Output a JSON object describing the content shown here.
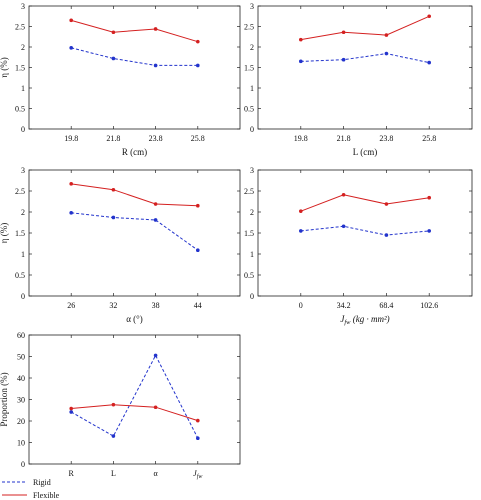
{
  "chart_data": [
    {
      "type": "line",
      "categories": [
        "19.8",
        "21.8",
        "23.8",
        "25.8"
      ],
      "xlabel": "R (cm)",
      "ylabel": "η (%)",
      "ylim": [
        0,
        3
      ],
      "yticks": [
        "0",
        "0.5",
        "1",
        "1.5",
        "2",
        "2.5",
        "3"
      ],
      "grid": false,
      "series": [
        {
          "name": "Rigid",
          "values": [
            1.98,
            1.72,
            1.55,
            1.55
          ],
          "color": "#2233cc",
          "dash": true
        },
        {
          "name": "Flexible",
          "values": [
            2.65,
            2.36,
            2.44,
            2.13
          ],
          "color": "#d42020",
          "dash": false
        }
      ]
    },
    {
      "type": "line",
      "categories": [
        "19.8",
        "21.8",
        "23.8",
        "25.8"
      ],
      "xlabel": "L (cm)",
      "ylabel": "",
      "ylim": [
        0,
        3
      ],
      "yticks": [
        "0",
        "0.5",
        "1",
        "1.5",
        "2",
        "2.5",
        "3"
      ],
      "grid": false,
      "series": [
        {
          "name": "Rigid",
          "values": [
            1.65,
            1.69,
            1.84,
            1.62
          ],
          "color": "#2233cc",
          "dash": true
        },
        {
          "name": "Flexible",
          "values": [
            2.18,
            2.36,
            2.29,
            2.75
          ],
          "color": "#d42020",
          "dash": false
        }
      ]
    },
    {
      "type": "line",
      "categories": [
        "26",
        "32",
        "38",
        "44"
      ],
      "xlabel": "α (°)",
      "ylabel": "η (%)",
      "ylim": [
        0,
        3
      ],
      "yticks": [
        "0",
        "0.5",
        "1",
        "1.5",
        "2",
        "2.5",
        "3"
      ],
      "grid": false,
      "series": [
        {
          "name": "Rigid",
          "values": [
            1.98,
            1.87,
            1.81,
            1.09
          ],
          "color": "#2233cc",
          "dash": true
        },
        {
          "name": "Flexible",
          "values": [
            2.67,
            2.53,
            2.19,
            2.15
          ],
          "color": "#d42020",
          "dash": false
        }
      ]
    },
    {
      "type": "line",
      "categories": [
        "0",
        "34.2",
        "68.4",
        "102.6"
      ],
      "xlabel": "Jfw (kg · mm²)",
      "ylabel": "",
      "ylim": [
        0,
        3
      ],
      "yticks": [
        "0",
        "0.5",
        "1",
        "1.5",
        "2",
        "2.5",
        "3"
      ],
      "grid": false,
      "series": [
        {
          "name": "Rigid",
          "values": [
            1.55,
            1.66,
            1.45,
            1.55
          ],
          "color": "#2233cc",
          "dash": true
        },
        {
          "name": "Flexible",
          "values": [
            2.02,
            2.41,
            2.19,
            2.34
          ],
          "color": "#d42020",
          "dash": false
        }
      ]
    },
    {
      "type": "line",
      "categories": [
        "R",
        "L",
        "α",
        "Jfw"
      ],
      "xlabel": "",
      "ylabel": "Proportion (%)",
      "ylim": [
        0,
        60
      ],
      "yticks": [
        "0",
        "10",
        "20",
        "30",
        "40",
        "50",
        "60"
      ],
      "grid": false,
      "series": [
        {
          "name": "Rigid",
          "values": [
            24.2,
            13.0,
            50.5,
            12.0
          ],
          "color": "#2233cc",
          "dash": true
        },
        {
          "name": "Flexible",
          "values": [
            25.8,
            27.6,
            26.4,
            20.2
          ],
          "color": "#d42020",
          "dash": false
        }
      ]
    }
  ],
  "legend": {
    "placement": "bottom-left",
    "entries": [
      {
        "label": "Rigid",
        "color": "#2233cc",
        "dash": true
      },
      {
        "label": "Flexible",
        "color": "#d42020",
        "dash": false
      }
    ]
  }
}
